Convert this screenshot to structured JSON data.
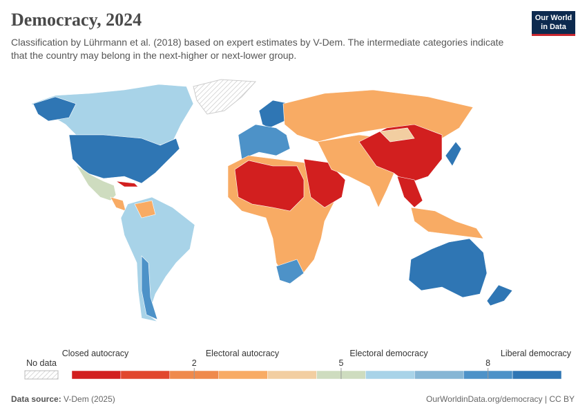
{
  "header": {
    "title": "Democracy, 2024",
    "subtitle": "Classification by Lührmann et al. (2018) based on expert estimates by V-Dem. The intermediate categories indicate that the country may belong in the next-higher or next-lower group.",
    "logo": [
      "Our World",
      "in Data"
    ]
  },
  "legend": {
    "no_data": "No data",
    "groups": [
      "Closed autocracy",
      "Electoral autocracy",
      "Electoral democracy",
      "Liberal democracy"
    ],
    "ticks": [
      2,
      5,
      8
    ],
    "colors": [
      "#d21f1f",
      "#e1472e",
      "#ef8a4c",
      "#f8ab64",
      "#f2cea1",
      "#cedcbf",
      "#a8d3e8",
      "#86b6d5",
      "#4d92c8",
      "#2f76b4"
    ]
  },
  "footer": {
    "source_label": "Data source:",
    "source": "V-Dem (2025)",
    "link": "OurWorldinData.org/democracy | CC BY"
  }
}
